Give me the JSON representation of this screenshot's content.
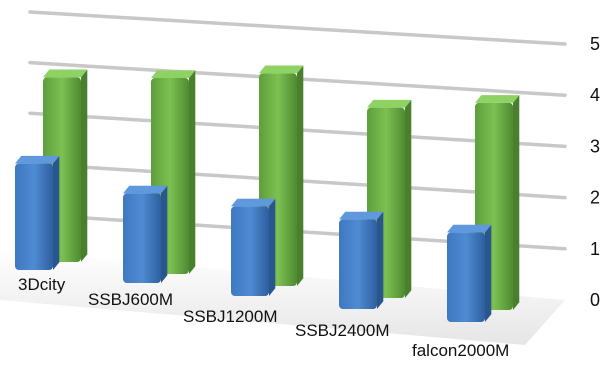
{
  "chart_data": {
    "type": "bar",
    "style": "3d-clustered-column",
    "categories": [
      "3Dcity",
      "SSBJ600M",
      "SSBJ1200M",
      "SSBJ2400M",
      "falcon2000M"
    ],
    "series": [
      {
        "values": [
          1.9,
          1.6,
          1.6,
          1.6,
          1.6
        ],
        "color": "#3b73b8"
      },
      {
        "values": [
          3.3,
          3.5,
          3.8,
          3.4,
          3.7
        ],
        "color": "#6aac45"
      }
    ],
    "y_ticks": [
      "0",
      "1",
      "2",
      "3",
      "4",
      "5"
    ],
    "ylim": [
      0,
      5
    ],
    "grid": true,
    "legend": "none"
  }
}
